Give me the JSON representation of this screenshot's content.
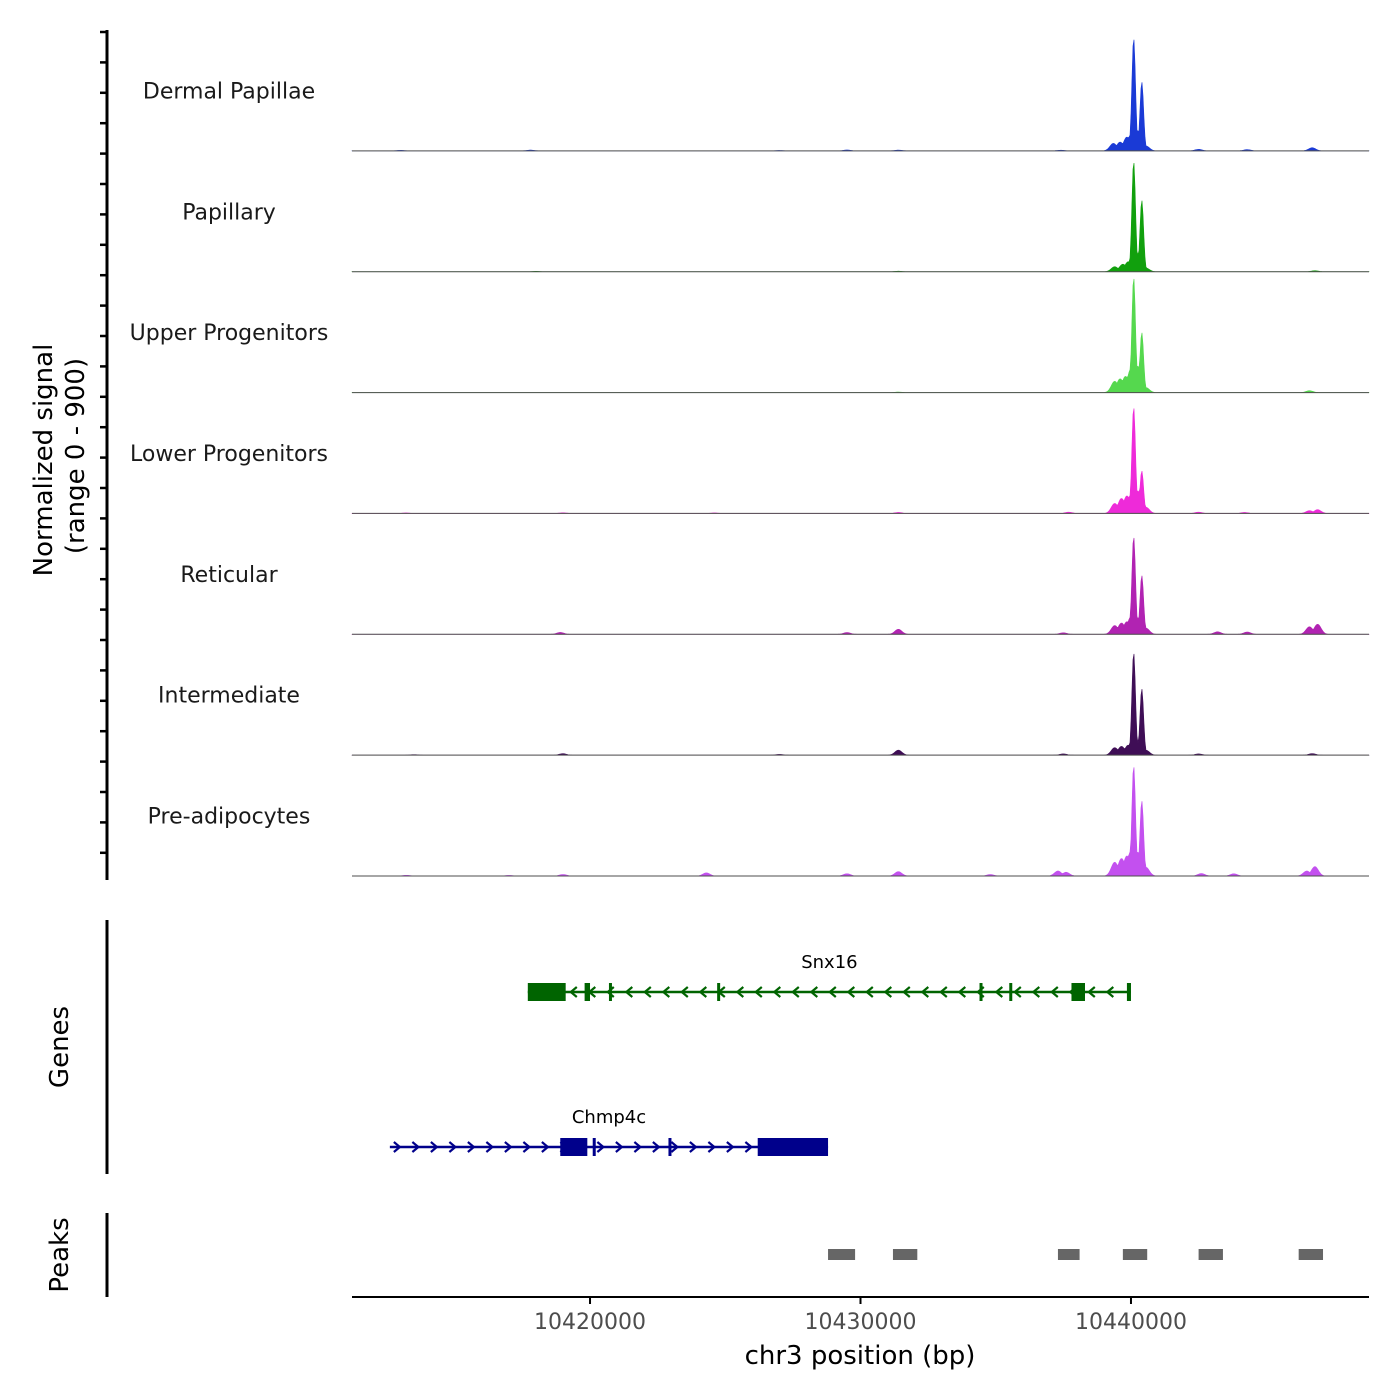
{
  "chart_data": {
    "type": "area",
    "title": "",
    "ylabel": "Normalized signal (range 0 - 900)",
    "ylabel_lines": [
      "Normalized signal",
      "(range 0 - 900)"
    ],
    "xlabel": "chr3 position (bp)",
    "chromosome": "chr3",
    "xlim": [
      10411200,
      10448800
    ],
    "ylim": [
      0,
      900
    ],
    "x_ticks": [
      {
        "value": 10420000,
        "label": "10420000"
      },
      {
        "value": 10430000,
        "label": "10430000"
      },
      {
        "value": 10440000,
        "label": "10440000"
      }
    ],
    "tracks": [
      {
        "name": "Dermal Papillae",
        "color": "#1a3ad6",
        "peaks": [
          [
            10413000,
            4
          ],
          [
            10417800,
            6
          ],
          [
            10427000,
            3
          ],
          [
            10429500,
            7
          ],
          [
            10431400,
            6
          ],
          [
            10437400,
            5
          ],
          [
            10439350,
            60
          ],
          [
            10439600,
            70
          ],
          [
            10439850,
            110
          ],
          [
            10440000,
            130
          ],
          [
            10440100,
            900
          ],
          [
            10440200,
            170
          ],
          [
            10440400,
            550
          ],
          [
            10440550,
            40
          ],
          [
            10442500,
            12
          ],
          [
            10444300,
            10
          ],
          [
            10446700,
            25
          ]
        ]
      },
      {
        "name": "Papillary",
        "color": "#11a00d",
        "peaks": [
          [
            10418000,
            3
          ],
          [
            10431400,
            4
          ],
          [
            10439400,
            40
          ],
          [
            10439700,
            60
          ],
          [
            10439900,
            80
          ],
          [
            10440100,
            880
          ],
          [
            10440200,
            150
          ],
          [
            10440400,
            570
          ],
          [
            10440550,
            30
          ],
          [
            10446800,
            8
          ]
        ]
      },
      {
        "name": "Upper Progenitors",
        "color": "#55d84e",
        "peaks": [
          [
            10431400,
            4
          ],
          [
            10439400,
            90
          ],
          [
            10439600,
            110
          ],
          [
            10439800,
            130
          ],
          [
            10440000,
            190
          ],
          [
            10440100,
            920
          ],
          [
            10440250,
            210
          ],
          [
            10440400,
            480
          ],
          [
            10440550,
            40
          ],
          [
            10446600,
            15
          ]
        ]
      },
      {
        "name": "Lower Progenitors",
        "color": "#ee2ad9",
        "peaks": [
          [
            10413200,
            4
          ],
          [
            10419000,
            5
          ],
          [
            10424600,
            4
          ],
          [
            10431400,
            8
          ],
          [
            10437700,
            10
          ],
          [
            10439400,
            80
          ],
          [
            10439650,
            120
          ],
          [
            10439850,
            140
          ],
          [
            10440000,
            150
          ],
          [
            10440100,
            850
          ],
          [
            10440250,
            180
          ],
          [
            10440400,
            340
          ],
          [
            10440550,
            50
          ],
          [
            10442500,
            10
          ],
          [
            10444200,
            8
          ],
          [
            10446600,
            22
          ],
          [
            10446900,
            30
          ]
        ]
      },
      {
        "name": "Reticular",
        "color": "#b123b2",
        "peaks": [
          [
            10418900,
            15
          ],
          [
            10429500,
            14
          ],
          [
            10431400,
            40
          ],
          [
            10437500,
            12
          ],
          [
            10439400,
            70
          ],
          [
            10439650,
            90
          ],
          [
            10439850,
            100
          ],
          [
            10440000,
            140
          ],
          [
            10440100,
            780
          ],
          [
            10440250,
            120
          ],
          [
            10440400,
            470
          ],
          [
            10440550,
            50
          ],
          [
            10443200,
            20
          ],
          [
            10444300,
            18
          ],
          [
            10446600,
            60
          ],
          [
            10446900,
            80
          ]
        ]
      },
      {
        "name": "Intermediate",
        "color": "#3f0e56",
        "peaks": [
          [
            10413500,
            4
          ],
          [
            10419000,
            12
          ],
          [
            10427000,
            6
          ],
          [
            10431400,
            40
          ],
          [
            10437500,
            10
          ],
          [
            10439400,
            60
          ],
          [
            10439650,
            70
          ],
          [
            10439900,
            80
          ],
          [
            10440100,
            820
          ],
          [
            10440250,
            100
          ],
          [
            10440400,
            530
          ],
          [
            10440550,
            40
          ],
          [
            10442500,
            10
          ],
          [
            10446700,
            12
          ]
        ]
      },
      {
        "name": "Pre-adipocytes",
        "color": "#c350ef",
        "peaks": [
          [
            10413200,
            6
          ],
          [
            10417000,
            5
          ],
          [
            10419000,
            12
          ],
          [
            10424300,
            25
          ],
          [
            10429500,
            18
          ],
          [
            10431400,
            35
          ],
          [
            10434800,
            12
          ],
          [
            10437300,
            40
          ],
          [
            10437600,
            30
          ],
          [
            10439400,
            110
          ],
          [
            10439650,
            140
          ],
          [
            10439850,
            160
          ],
          [
            10440000,
            200
          ],
          [
            10440100,
            880
          ],
          [
            10440250,
            190
          ],
          [
            10440400,
            600
          ],
          [
            10440550,
            70
          ],
          [
            10442600,
            20
          ],
          [
            10443800,
            18
          ],
          [
            10446500,
            40
          ],
          [
            10446800,
            75
          ]
        ]
      }
    ],
    "genes_panel_label": "Genes",
    "genes": [
      {
        "name": "Snx16",
        "strand": "-",
        "color": "#006400",
        "start": 10417700,
        "end": 10440000,
        "exons": [
          [
            10417700,
            10419100
          ],
          [
            10419800,
            10420000
          ],
          [
            10420700,
            10420800
          ],
          [
            10424700,
            10424800
          ],
          [
            10434400,
            10434500
          ],
          [
            10435500,
            10435600
          ],
          [
            10437800,
            10438300
          ],
          [
            10439850,
            10440000
          ]
        ]
      },
      {
        "name": "Chmp4c",
        "strand": "+",
        "color": "#00008b",
        "start": 10412600,
        "end": 10428800,
        "exons": [
          [
            10418900,
            10419900
          ],
          [
            10420100,
            10420200
          ],
          [
            10422900,
            10423000
          ],
          [
            10426200,
            10428800
          ]
        ]
      }
    ],
    "peaks_panel_label": "Peaks",
    "peak_regions": [
      [
        10428800,
        10429800
      ],
      [
        10431200,
        10432100
      ],
      [
        10437300,
        10438100
      ],
      [
        10439700,
        10440600
      ],
      [
        10442500,
        10443400
      ],
      [
        10446200,
        10447100
      ]
    ],
    "peak_color": "#666666"
  }
}
